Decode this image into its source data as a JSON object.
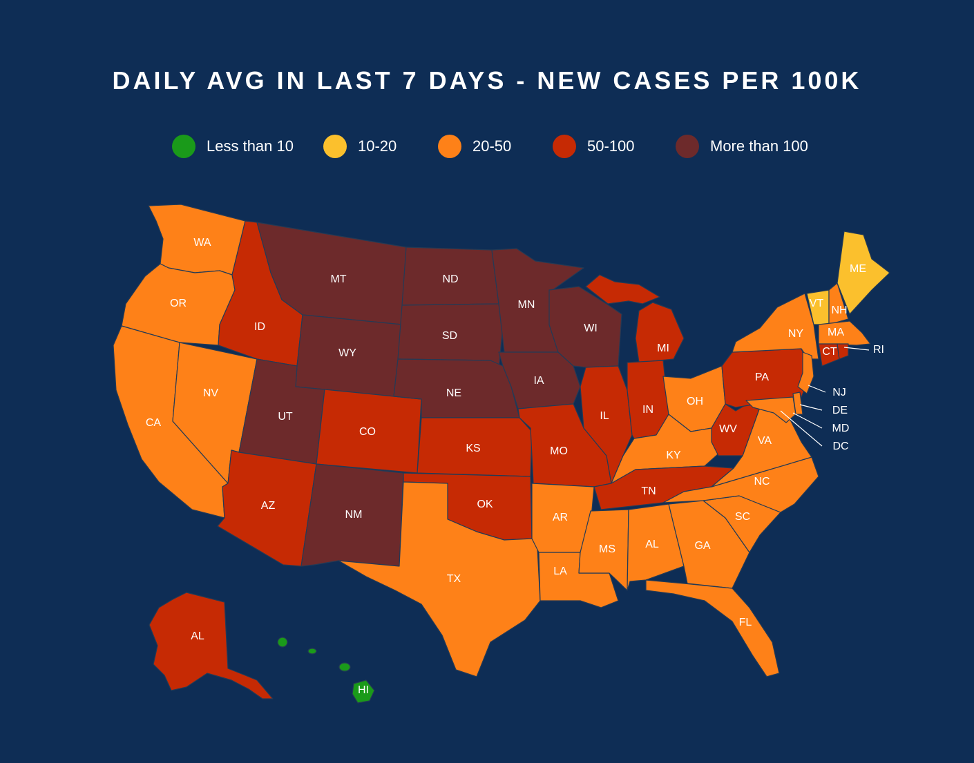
{
  "title": "DAILY AVG IN LAST 7 DAYS - NEW CASES PER 100K",
  "legend": [
    {
      "label": "Less than 10",
      "color": "#1a9a1a"
    },
    {
      "label": "10-20",
      "color": "#fbc02d"
    },
    {
      "label": "20-50",
      "color": "#fe8118"
    },
    {
      "label": "50-100",
      "color": "#c62a04"
    },
    {
      "label": "More than 100",
      "color": "#6d2a2b"
    }
  ],
  "states": [
    {
      "abbr": "WA",
      "category": 2
    },
    {
      "abbr": "OR",
      "category": 2
    },
    {
      "abbr": "CA",
      "category": 2
    },
    {
      "abbr": "NV",
      "category": 2
    },
    {
      "abbr": "ID",
      "category": 3
    },
    {
      "abbr": "MT",
      "category": 4
    },
    {
      "abbr": "WY",
      "category": 4
    },
    {
      "abbr": "UT",
      "category": 4
    },
    {
      "abbr": "AZ",
      "category": 3
    },
    {
      "abbr": "CO",
      "category": 3
    },
    {
      "abbr": "NM",
      "category": 4
    },
    {
      "abbr": "ND",
      "category": 4
    },
    {
      "abbr": "SD",
      "category": 4
    },
    {
      "abbr": "NE",
      "category": 4
    },
    {
      "abbr": "KS",
      "category": 3
    },
    {
      "abbr": "OK",
      "category": 3
    },
    {
      "abbr": "TX",
      "category": 2
    },
    {
      "abbr": "MN",
      "category": 4
    },
    {
      "abbr": "IA",
      "category": 4
    },
    {
      "abbr": "MO",
      "category": 3
    },
    {
      "abbr": "AR",
      "category": 2
    },
    {
      "abbr": "LA",
      "category": 2
    },
    {
      "abbr": "WI",
      "category": 4
    },
    {
      "abbr": "IL",
      "category": 3
    },
    {
      "abbr": "MI",
      "category": 3
    },
    {
      "abbr": "IN",
      "category": 3
    },
    {
      "abbr": "OH",
      "category": 2
    },
    {
      "abbr": "KY",
      "category": 2
    },
    {
      "abbr": "TN",
      "category": 3
    },
    {
      "abbr": "MS",
      "category": 2
    },
    {
      "abbr": "AL",
      "category": 2
    },
    {
      "abbr": "GA",
      "category": 2
    },
    {
      "abbr": "FL",
      "category": 2
    },
    {
      "abbr": "SC",
      "category": 2
    },
    {
      "abbr": "NC",
      "category": 2
    },
    {
      "abbr": "VA",
      "category": 2
    },
    {
      "abbr": "WV",
      "category": 3
    },
    {
      "abbr": "PA",
      "category": 3
    },
    {
      "abbr": "NY",
      "category": 2
    },
    {
      "abbr": "VT",
      "category": 1
    },
    {
      "abbr": "NH",
      "category": 2
    },
    {
      "abbr": "ME",
      "category": 1
    },
    {
      "abbr": "MA",
      "category": 2
    },
    {
      "abbr": "CT",
      "category": 3
    },
    {
      "abbr": "RI",
      "category": 3
    },
    {
      "abbr": "NJ",
      "category": 2
    },
    {
      "abbr": "DE",
      "category": 2
    },
    {
      "abbr": "MD",
      "category": 2
    },
    {
      "abbr": "DC",
      "category": 2
    },
    {
      "abbr": "AL",
      "category": 3
    },
    {
      "abbr": "HI",
      "category": 0
    }
  ]
}
